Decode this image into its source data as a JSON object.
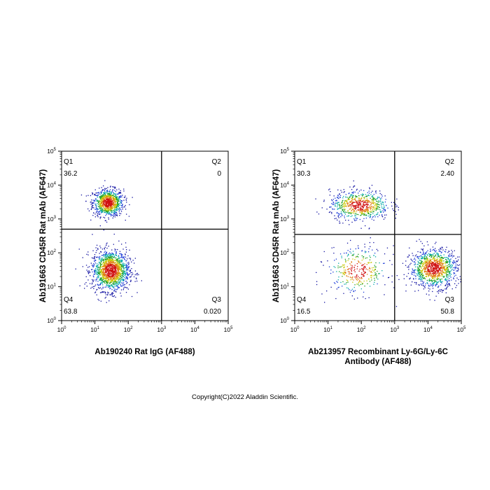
{
  "copyright": "Copyright(C)2022 Aladdin Scientific.",
  "chart_data": [
    {
      "type": "scatter",
      "xlabel": [
        "Ab190240 Rat IgG (AF488)"
      ],
      "ylabel": "Ab191663 CD45R Rat mAb (AF647)",
      "scale": "log",
      "xlim": [
        1,
        100000
      ],
      "ylim": [
        1,
        100000
      ],
      "ticks": [
        {
          "base": "10",
          "exp": "0"
        },
        {
          "base": "10",
          "exp": "1"
        },
        {
          "base": "10",
          "exp": "2"
        },
        {
          "base": "10",
          "exp": "3"
        },
        {
          "base": "10",
          "exp": "4"
        },
        {
          "base": "10",
          "exp": "5"
        }
      ],
      "gate": {
        "x": 1000,
        "y": 500
      },
      "quadrants": {
        "Q1": {
          "label": "Q1",
          "value": "36.2"
        },
        "Q2": {
          "label": "Q2",
          "value": "0"
        },
        "Q3": {
          "label": "Q3",
          "value": "0.020"
        },
        "Q4": {
          "label": "Q4",
          "value": "63.8"
        }
      },
      "populations": [
        {
          "cx": 25,
          "cy": 3000,
          "sx": 0.23,
          "sy": 0.2,
          "n": 900
        },
        {
          "cx": 30,
          "cy": 30,
          "sx": 0.28,
          "sy": 0.3,
          "n": 1400
        }
      ]
    },
    {
      "type": "scatter",
      "xlabel": [
        "Ab213957 Recombinant Ly-6G/Ly-6C",
        "Antibody (AF488)"
      ],
      "ylabel": "Ab191663 CD45R Rat mAb (AF647)",
      "scale": "log",
      "xlim": [
        1,
        100000
      ],
      "ylim": [
        1,
        100000
      ],
      "ticks": [
        {
          "base": "10",
          "exp": "0"
        },
        {
          "base": "10",
          "exp": "1"
        },
        {
          "base": "10",
          "exp": "2"
        },
        {
          "base": "10",
          "exp": "3"
        },
        {
          "base": "10",
          "exp": "4"
        },
        {
          "base": "10",
          "exp": "5"
        }
      ],
      "gate": {
        "x": 1000,
        "y": 350
      },
      "quadrants": {
        "Q1": {
          "label": "Q1",
          "value": "30.3"
        },
        "Q2": {
          "label": "Q2",
          "value": "2.40"
        },
        "Q3": {
          "label": "Q3",
          "value": "50.8"
        },
        "Q4": {
          "label": "Q4",
          "value": "16.5"
        }
      },
      "populations": [
        {
          "cx": 90,
          "cy": 2500,
          "sx": 0.45,
          "sy": 0.22,
          "n": 700
        },
        {
          "cx": 80,
          "cy": 30,
          "sx": 0.45,
          "sy": 0.35,
          "n": 350
        },
        {
          "cx": 15000,
          "cy": 35,
          "sx": 0.35,
          "sy": 0.28,
          "n": 1100
        }
      ]
    }
  ]
}
